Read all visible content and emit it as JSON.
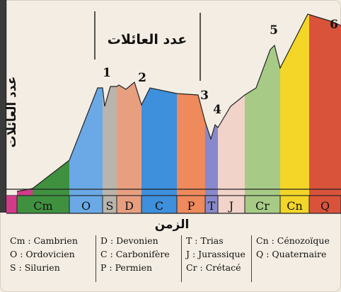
{
  "top_label": "عدد العائلات",
  "y_axis_label": "عدد العائلات",
  "x_axis_label": "الزمن",
  "extinction_markers": [
    "1",
    "2",
    "3",
    "4",
    "5",
    "6"
  ],
  "periods": [
    {
      "code": "Cm",
      "color": "#3f9140"
    },
    {
      "code": "O",
      "color": "#6aa9e6"
    },
    {
      "code": "S",
      "color": "#b9b4ac"
    },
    {
      "code": "D",
      "color": "#e89f80"
    },
    {
      "code": "C",
      "color": "#3e8fdc"
    },
    {
      "code": "P",
      "color": "#ee8a5b"
    },
    {
      "code": "T",
      "color": "#8888cc"
    },
    {
      "code": "J",
      "color": "#f1d3c9"
    },
    {
      "code": "Cr",
      "color": "#a7cb86"
    },
    {
      "code": "Cn",
      "color": "#f3d627"
    },
    {
      "code": "Q",
      "color": "#d9533b"
    }
  ],
  "legend": {
    "col1": [
      "Cm : Cambrien",
      "O : Ordovicien",
      "S : Silurien"
    ],
    "col2": [
      "D : Devonien",
      "C : Carbonifère",
      "P : Permien"
    ],
    "col3": [
      "T : Trias",
      "J : Jurassique",
      "Cr : Crétacé"
    ],
    "col4": [
      "Cn : Cénozoïque",
      "Q : Quaternaire"
    ]
  }
}
